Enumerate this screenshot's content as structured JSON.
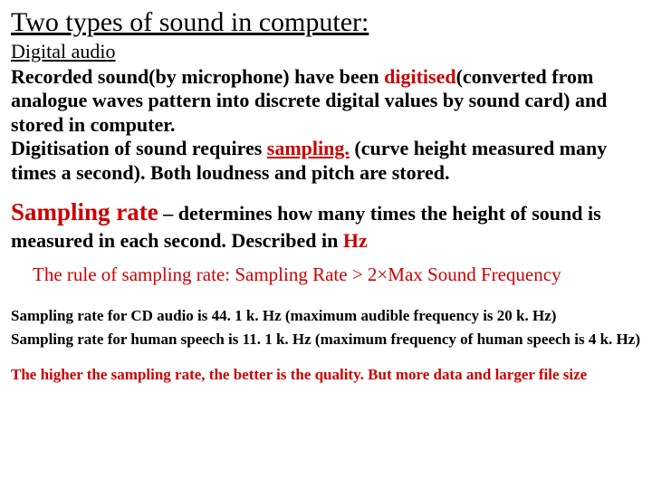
{
  "title": "Two types of sound in computer:",
  "subtitle": "Digital audio",
  "para1_a": "Recorded sound(by microphone) have been ",
  "para1_digitised": "digitised",
  "para1_b": "(converted from analogue waves pattern into discrete digital values by sound card) and stored in computer.",
  "para1_c": "Digitisation of sound requires ",
  "para1_sampling": "sampling.",
  "para1_d": " (curve height measured many times a second). Both loudness and pitch are stored.",
  "sampling_term": "Sampling rate",
  "sampling_dash": " – ",
  "sampling_rest_a": "determines how many times the height of sound is measured in each second. Described in ",
  "sampling_hz": "Hz",
  "rule_a": "The rule of sampling rate: Sampling Rate > 2",
  "rule_times": "×",
  "rule_b": "Max Sound Frequency",
  "cd_line": "Sampling rate for CD audio is 44. 1 k. Hz (maximum audible frequency is 20 k. Hz)",
  "speech_line": "Sampling rate for human speech is 11. 1 k. Hz (maximum frequency of human speech is 4 k. Hz)",
  "final": "The higher the sampling rate, the better is the quality. But more data and larger file size",
  "colors": {
    "red": "#cc0000",
    "text": "#000000",
    "background": "#ffffff"
  },
  "typography": {
    "title_fontsize": 30,
    "subtitle_fontsize": 22,
    "body_fontsize": 22,
    "sampling_term_fontsize": 27,
    "rule_fontsize": 21,
    "small_fontsize": 17,
    "font_family": "Times New Roman"
  }
}
